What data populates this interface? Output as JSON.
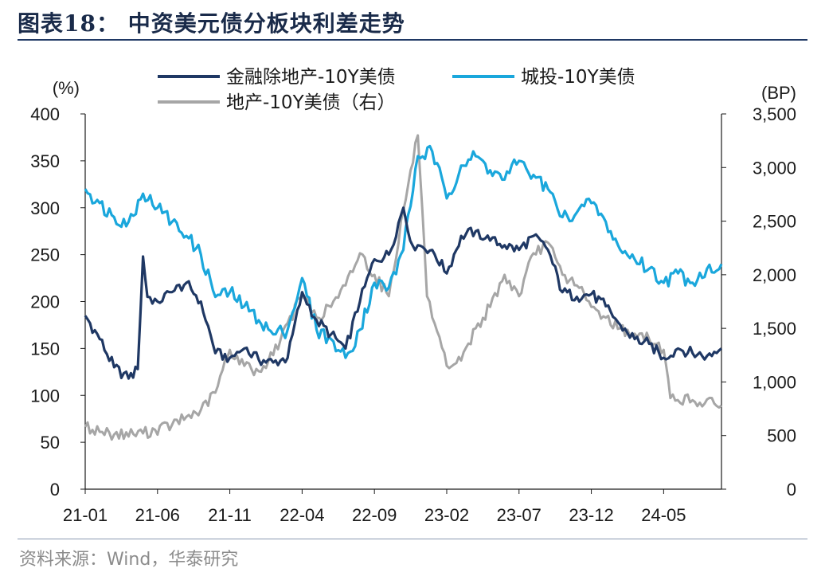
{
  "header": {
    "title": "图表18：  中资美元债分板块利差走势"
  },
  "footer": {
    "source": "资料来源：Wind，华泰研究"
  },
  "colors": {
    "navy": "#1f3864",
    "cyan": "#1aa7dc",
    "gray": "#a6a6a6",
    "axis": "#1a1a1a"
  },
  "chart_data": {
    "type": "line",
    "title": "",
    "left_axis": {
      "unit_label": "(%)",
      "ylim": [
        0,
        400
      ],
      "ticks": [
        0,
        50,
        100,
        150,
        200,
        250,
        300,
        350,
        400
      ]
    },
    "right_axis": {
      "unit_label": "(BP)",
      "ylim": [
        0,
        3500
      ],
      "ticks": [
        0,
        500,
        1000,
        1500,
        2000,
        2500,
        3000,
        3500
      ],
      "tick_labels": [
        "0",
        "500",
        "1,000",
        "1,500",
        "2,000",
        "2,500",
        "3,000",
        "3,500"
      ]
    },
    "x_axis": {
      "range": [
        "2021-01",
        "2024-09"
      ],
      "ticks": [
        "21-01",
        "21-06",
        "21-11",
        "22-04",
        "22-09",
        "23-02",
        "23-07",
        "23-12",
        "24-05"
      ]
    },
    "legend": {
      "placement": "top"
    },
    "series": [
      {
        "name": "金融除地产-10Y美债",
        "axis": "left",
        "color": "#1f3864",
        "points": [
          [
            "2021-01",
            185
          ],
          [
            "2021-02",
            160
          ],
          [
            "2021-03",
            130
          ],
          [
            "2021-04",
            118
          ],
          [
            "2021-04-20",
            128
          ],
          [
            "2021-05-01",
            248
          ],
          [
            "2021-05-10",
            205
          ],
          [
            "2021-06",
            200
          ],
          [
            "2021-07",
            210
          ],
          [
            "2021-08",
            220
          ],
          [
            "2021-09",
            200
          ],
          [
            "2021-10",
            145
          ],
          [
            "2021-11",
            140
          ],
          [
            "2021-12",
            150
          ],
          [
            "2022-01",
            138
          ],
          [
            "2022-02",
            135
          ],
          [
            "2022-03",
            140
          ],
          [
            "2022-04",
            210
          ],
          [
            "2022-05",
            180
          ],
          [
            "2022-06",
            165
          ],
          [
            "2022-07",
            150
          ],
          [
            "2022-08",
            200
          ],
          [
            "2022-09",
            245
          ],
          [
            "2022-10",
            250
          ],
          [
            "2022-11",
            300
          ],
          [
            "2022-11-20",
            260
          ],
          [
            "2022-12",
            260
          ],
          [
            "2023-01",
            255
          ],
          [
            "2023-02",
            230
          ],
          [
            "2023-03",
            270
          ],
          [
            "2023-04",
            275
          ],
          [
            "2023-05",
            265
          ],
          [
            "2023-06",
            260
          ],
          [
            "2023-07",
            255
          ],
          [
            "2023-08",
            270
          ],
          [
            "2023-09",
            255
          ],
          [
            "2023-10",
            210
          ],
          [
            "2023-11",
            205
          ],
          [
            "2023-12",
            208
          ],
          [
            "2024-01",
            195
          ],
          [
            "2024-02",
            175
          ],
          [
            "2024-03",
            160
          ],
          [
            "2024-04",
            155
          ],
          [
            "2024-05",
            140
          ],
          [
            "2024-06",
            150
          ],
          [
            "2024-07",
            145
          ],
          [
            "2024-08",
            142
          ],
          [
            "2024-09",
            150
          ]
        ]
      },
      {
        "name": "城投-10Y美债",
        "axis": "left",
        "color": "#1aa7dc",
        "points": [
          [
            "2021-01",
            320
          ],
          [
            "2021-02",
            305
          ],
          [
            "2021-03",
            290
          ],
          [
            "2021-04",
            285
          ],
          [
            "2021-05",
            315
          ],
          [
            "2021-06",
            300
          ],
          [
            "2021-07",
            285
          ],
          [
            "2021-08",
            270
          ],
          [
            "2021-09",
            250
          ],
          [
            "2021-10",
            205
          ],
          [
            "2021-11",
            210
          ],
          [
            "2021-12",
            195
          ],
          [
            "2022-01",
            180
          ],
          [
            "2022-02",
            165
          ],
          [
            "2022-03",
            170
          ],
          [
            "2022-04",
            225
          ],
          [
            "2022-05",
            170
          ],
          [
            "2022-06",
            160
          ],
          [
            "2022-07",
            140
          ],
          [
            "2022-08",
            170
          ],
          [
            "2022-09",
            220
          ],
          [
            "2022-10",
            215
          ],
          [
            "2022-11",
            255
          ],
          [
            "2022-12",
            355
          ],
          [
            "2023-01",
            360
          ],
          [
            "2023-02",
            310
          ],
          [
            "2023-03",
            345
          ],
          [
            "2023-04",
            355
          ],
          [
            "2023-05",
            340
          ],
          [
            "2023-06",
            330
          ],
          [
            "2023-07",
            350
          ],
          [
            "2023-08",
            335
          ],
          [
            "2023-09",
            320
          ],
          [
            "2023-10",
            290
          ],
          [
            "2023-11",
            295
          ],
          [
            "2023-12",
            305
          ],
          [
            "2024-01",
            285
          ],
          [
            "2024-02",
            255
          ],
          [
            "2024-03",
            245
          ],
          [
            "2024-04",
            235
          ],
          [
            "2024-05",
            220
          ],
          [
            "2024-06",
            230
          ],
          [
            "2024-07",
            220
          ],
          [
            "2024-08",
            235
          ],
          [
            "2024-09",
            240
          ]
        ]
      },
      {
        "name": "地产-10Y美债（右）",
        "axis": "right",
        "color": "#a6a6a6",
        "points": [
          [
            "2021-01",
            580
          ],
          [
            "2021-03",
            510
          ],
          [
            "2021-05",
            520
          ],
          [
            "2021-07",
            600
          ],
          [
            "2021-09",
            740
          ],
          [
            "2021-10",
            900
          ],
          [
            "2021-11",
            1300
          ],
          [
            "2021-12",
            1150
          ],
          [
            "2022-01",
            1100
          ],
          [
            "2022-02",
            1250
          ],
          [
            "2022-03",
            1550
          ],
          [
            "2022-04",
            1800
          ],
          [
            "2022-05",
            1600
          ],
          [
            "2022-06",
            1700
          ],
          [
            "2022-07",
            1900
          ],
          [
            "2022-08",
            2200
          ],
          [
            "2022-09",
            2000
          ],
          [
            "2022-10",
            1800
          ],
          [
            "2022-11",
            2600
          ],
          [
            "2022-12",
            3300
          ],
          [
            "2022-12-20",
            1800
          ],
          [
            "2023-01",
            1600
          ],
          [
            "2023-02",
            1150
          ],
          [
            "2023-03",
            1200
          ],
          [
            "2023-04",
            1500
          ],
          [
            "2023-05",
            1700
          ],
          [
            "2023-06",
            2000
          ],
          [
            "2023-07",
            1800
          ],
          [
            "2023-08",
            2200
          ],
          [
            "2023-09",
            2300
          ],
          [
            "2023-10",
            2000
          ],
          [
            "2023-11",
            1900
          ],
          [
            "2023-12",
            1700
          ],
          [
            "2024-01",
            1600
          ],
          [
            "2024-02",
            1500
          ],
          [
            "2024-03",
            1450
          ],
          [
            "2024-04",
            1400
          ],
          [
            "2024-05",
            1300
          ],
          [
            "2024-05-15",
            850
          ],
          [
            "2024-07",
            830
          ],
          [
            "2024-09",
            780
          ]
        ]
      }
    ]
  }
}
